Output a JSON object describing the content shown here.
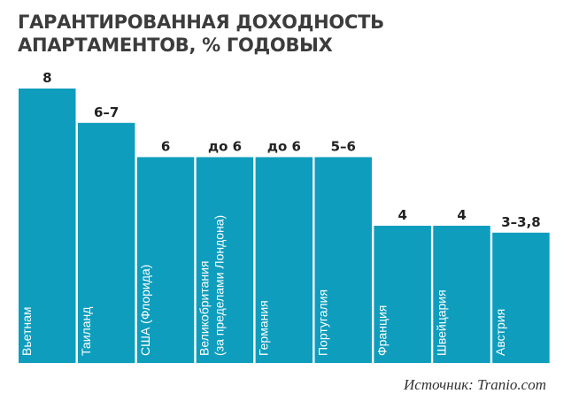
{
  "title": {
    "line1": "ГАРАНТИРОВАННАЯ ДОХОДНОСТЬ",
    "line2": "АПАРТАМЕНТОВ, % ГОДОВЫХ"
  },
  "source": "Источник: Tranio.com",
  "chart_data": {
    "type": "bar",
    "title": "ГАРАНТИРОВАННАЯ ДОХОДНОСТЬ АПАРТАМЕНТОВ, % ГОДОВЫХ",
    "categories": [
      [
        "Вьетнам"
      ],
      [
        "Таиланд"
      ],
      [
        "США (Флорида)"
      ],
      [
        "Великобритания",
        "(за пределами Лондона)"
      ],
      [
        "Германия"
      ],
      [
        "Португалия"
      ],
      [
        "Франция"
      ],
      [
        "Швейцария"
      ],
      [
        "Австрия"
      ]
    ],
    "values": [
      8,
      7,
      6,
      6,
      6,
      6,
      4,
      4,
      3.8
    ],
    "value_labels": [
      "8",
      "6–7",
      "6",
      "до 6",
      "до 6",
      "5–6",
      "4",
      "4",
      "3–3,8"
    ],
    "grid": false,
    "legend": "none",
    "bar_color": "#0e9dbd"
  }
}
